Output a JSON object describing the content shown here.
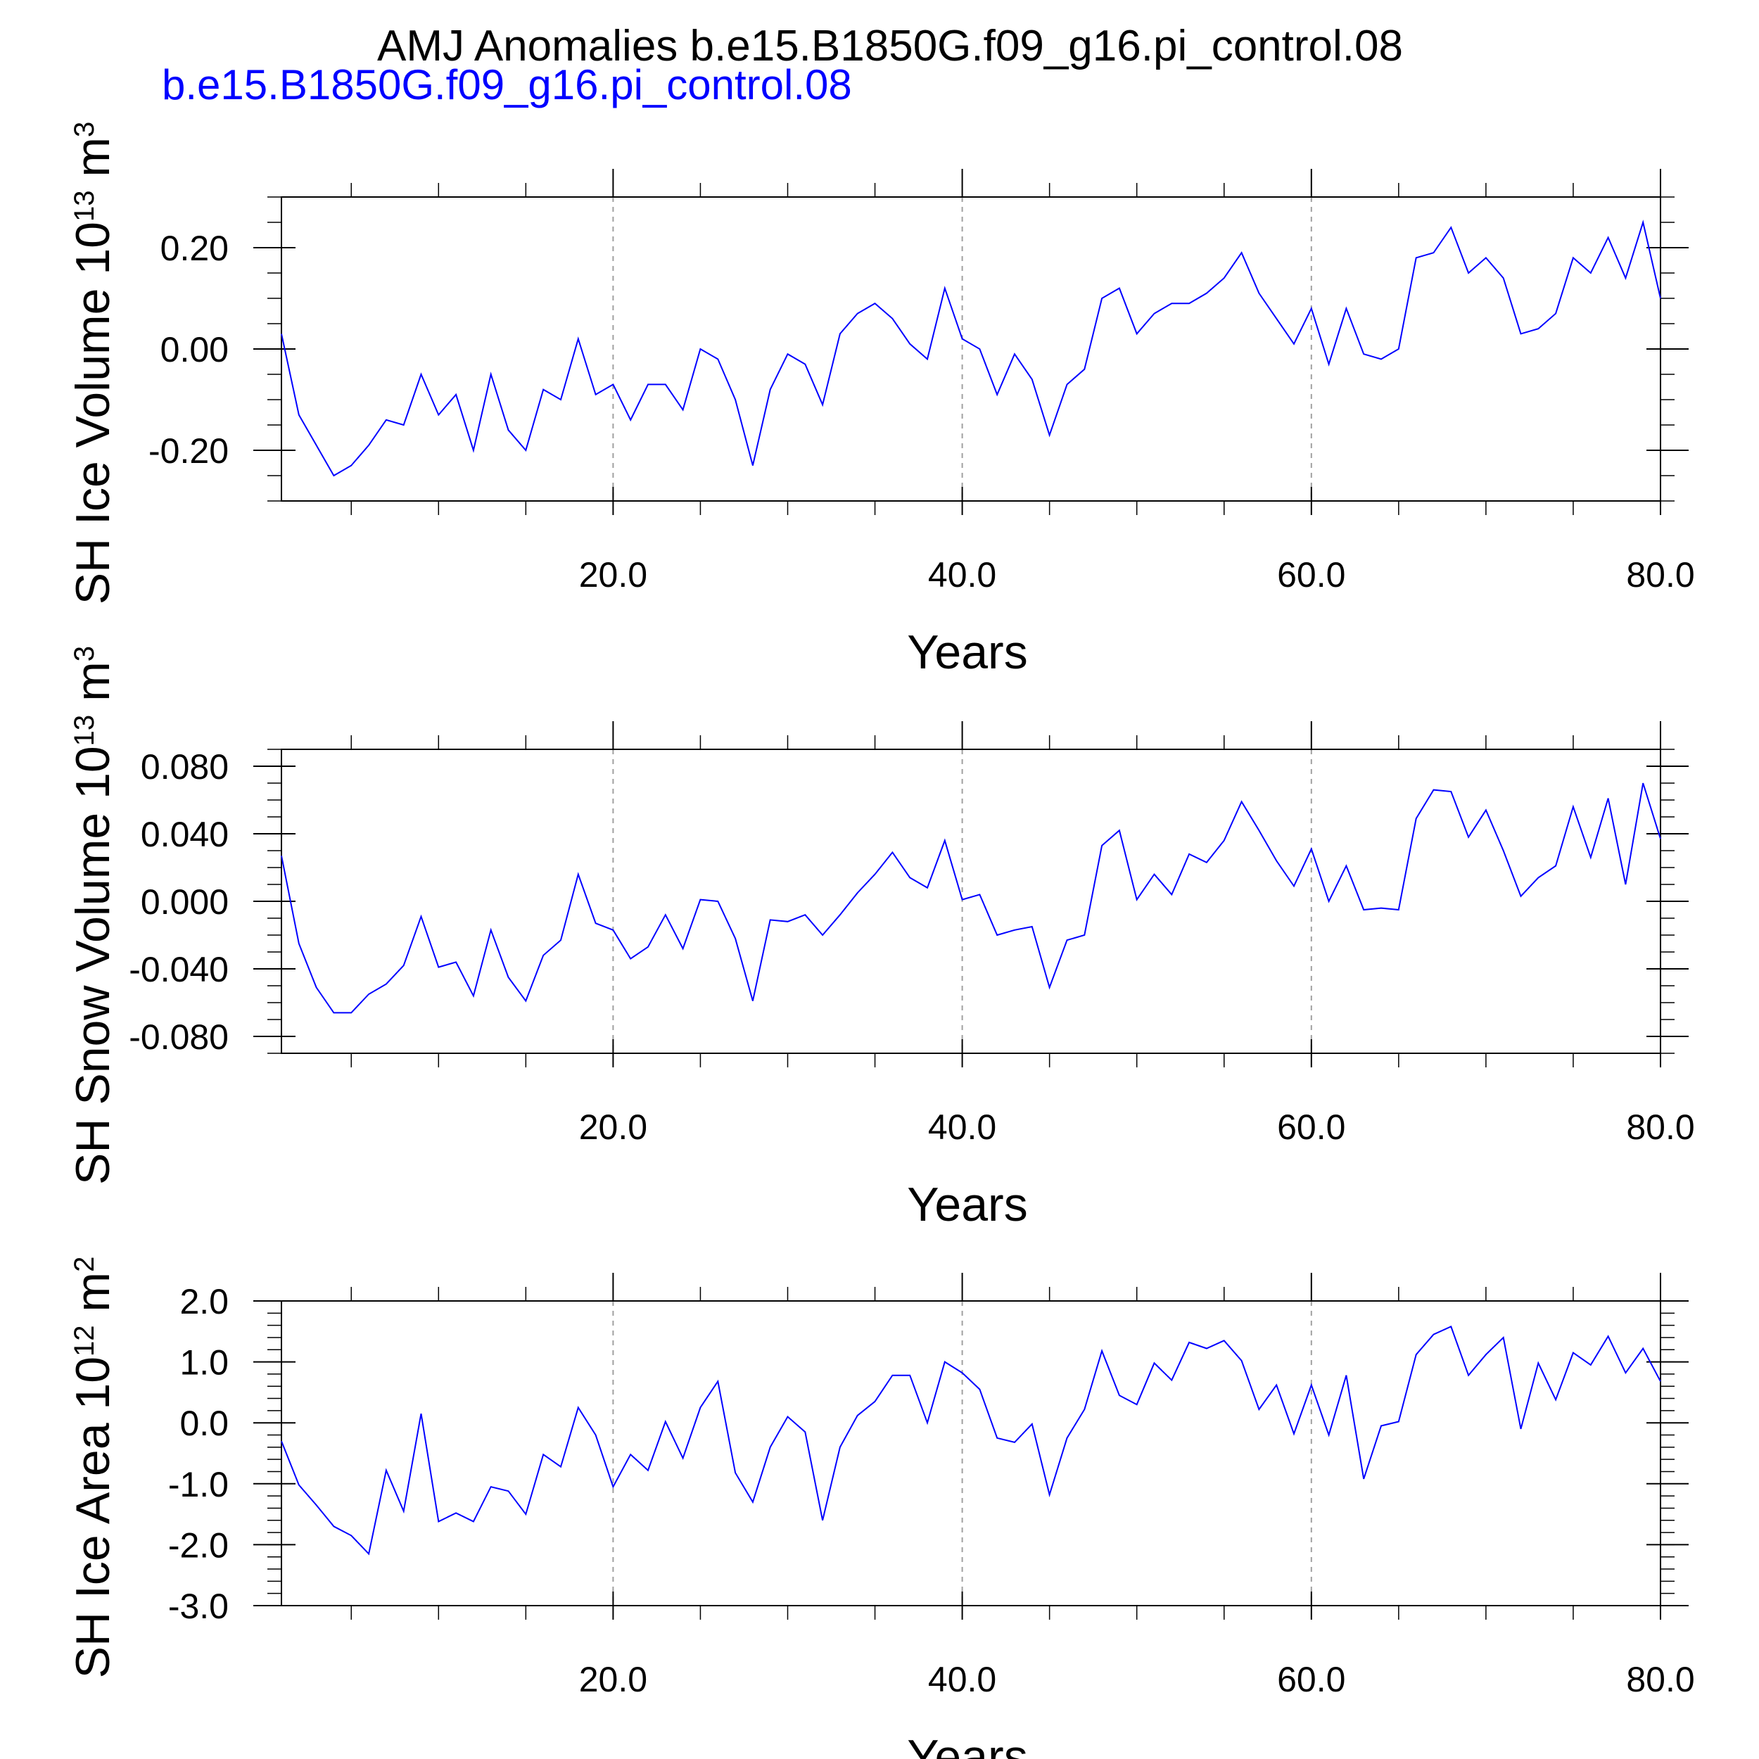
{
  "figure": {
    "title": "AMJ Anomalies b.e15.B1850G.f09_g16.pi_control.08",
    "legend_label": "b.e15.B1850G.f09_g16.pi_control.08",
    "series_color": "#0000ff",
    "reference_line_color": "#a0a0a0"
  },
  "chart_data": [
    {
      "type": "line",
      "ylabel": "SH Ice Volume 10",
      "ylabel_exponent": "13",
      "ylabel_unit": " m",
      "ylabel_unit_exponent": "3",
      "xlabel": "Years",
      "xlim": [
        1,
        80
      ],
      "ylim": [
        -0.3,
        0.3
      ],
      "x_ticks": [
        20,
        40,
        60,
        80
      ],
      "x_tick_labels": [
        "20.0",
        "40.0",
        "60.0",
        "80.0"
      ],
      "x_minor_ticks": [
        5,
        10,
        15,
        25,
        30,
        35,
        45,
        50,
        55,
        65,
        70,
        75
      ],
      "y_ticks": [
        -0.2,
        0.0,
        0.2
      ],
      "y_tick_labels": [
        "-0.20",
        "0.00",
        "0.20"
      ],
      "y_minor_step": 0.05,
      "vertical_reference_lines": [
        20,
        40,
        60
      ],
      "grid": false,
      "x": [
        1,
        2,
        3,
        4,
        5,
        6,
        7,
        8,
        9,
        10,
        11,
        12,
        13,
        14,
        15,
        16,
        17,
        18,
        19,
        20,
        21,
        22,
        23,
        24,
        25,
        26,
        27,
        28,
        29,
        30,
        31,
        32,
        33,
        34,
        35,
        36,
        37,
        38,
        39,
        40,
        41,
        42,
        43,
        44,
        45,
        46,
        47,
        48,
        49,
        50,
        51,
        52,
        53,
        54,
        55,
        56,
        57,
        58,
        59,
        60,
        61,
        62,
        63,
        64,
        65,
        66,
        67,
        68,
        69,
        70,
        71,
        72,
        73,
        74,
        75,
        76,
        77,
        78,
        79,
        80
      ],
      "series": [
        {
          "values": [
            0.03,
            -0.13,
            -0.19,
            -0.25,
            -0.23,
            -0.19,
            -0.14,
            -0.15,
            -0.05,
            -0.13,
            -0.09,
            -0.2,
            -0.05,
            -0.16,
            -0.2,
            -0.08,
            -0.1,
            0.02,
            -0.09,
            -0.07,
            -0.14,
            -0.07,
            -0.07,
            -0.12,
            0.0,
            -0.02,
            -0.1,
            -0.23,
            -0.08,
            -0.01,
            -0.03,
            -0.11,
            0.03,
            0.07,
            0.09,
            0.06,
            0.01,
            -0.02,
            0.12,
            0.02,
            0.0,
            -0.09,
            -0.01,
            -0.06,
            -0.17,
            -0.07,
            -0.04,
            0.1,
            0.12,
            0.03,
            0.07,
            0.09,
            0.09,
            0.11,
            0.14,
            0.19,
            0.11,
            0.06,
            0.01,
            0.08,
            -0.03,
            0.08,
            -0.01,
            -0.02,
            0.0,
            0.18,
            0.19,
            0.24,
            0.15,
            0.18,
            0.14,
            0.03,
            0.04,
            0.07,
            0.18,
            0.15,
            0.22,
            0.14,
            0.25,
            0.1
          ]
        }
      ]
    },
    {
      "type": "line",
      "ylabel": "SH Snow Volume 10",
      "ylabel_exponent": "13",
      "ylabel_unit": " m",
      "ylabel_unit_exponent": "3",
      "xlabel": "Years",
      "xlim": [
        1,
        80
      ],
      "ylim": [
        -0.09,
        0.09
      ],
      "x_ticks": [
        20,
        40,
        60,
        80
      ],
      "x_tick_labels": [
        "20.0",
        "40.0",
        "60.0",
        "80.0"
      ],
      "x_minor_ticks": [
        5,
        10,
        15,
        25,
        30,
        35,
        45,
        50,
        55,
        65,
        70,
        75
      ],
      "y_ticks": [
        -0.08,
        -0.04,
        0.0,
        0.04,
        0.08
      ],
      "y_tick_labels": [
        "-0.080",
        "-0.040",
        "0.000",
        "0.040",
        "0.080"
      ],
      "y_minor_step": 0.01,
      "vertical_reference_lines": [
        20,
        40,
        60
      ],
      "grid": false,
      "x": [
        1,
        2,
        3,
        4,
        5,
        6,
        7,
        8,
        9,
        10,
        11,
        12,
        13,
        14,
        15,
        16,
        17,
        18,
        19,
        20,
        21,
        22,
        23,
        24,
        25,
        26,
        27,
        28,
        29,
        30,
        31,
        32,
        33,
        34,
        35,
        36,
        37,
        38,
        39,
        40,
        41,
        42,
        43,
        44,
        45,
        46,
        47,
        48,
        49,
        50,
        51,
        52,
        53,
        54,
        55,
        56,
        57,
        58,
        59,
        60,
        61,
        62,
        63,
        64,
        65,
        66,
        67,
        68,
        69,
        70,
        71,
        72,
        73,
        74,
        75,
        76,
        77,
        78,
        79,
        80
      ],
      "series": [
        {
          "values": [
            0.027,
            -0.025,
            -0.051,
            -0.066,
            -0.066,
            -0.055,
            -0.049,
            -0.038,
            -0.009,
            -0.039,
            -0.036,
            -0.056,
            -0.017,
            -0.045,
            -0.059,
            -0.032,
            -0.023,
            0.016,
            -0.013,
            -0.017,
            -0.034,
            -0.027,
            -0.008,
            -0.028,
            0.001,
            0.0,
            -0.022,
            -0.059,
            -0.011,
            -0.012,
            -0.008,
            -0.02,
            -0.008,
            0.005,
            0.016,
            0.029,
            0.014,
            0.008,
            0.036,
            0.001,
            0.004,
            -0.02,
            -0.017,
            -0.015,
            -0.051,
            -0.023,
            -0.02,
            0.033,
            0.042,
            0.001,
            0.016,
            0.004,
            0.028,
            0.023,
            0.036,
            0.059,
            0.042,
            0.024,
            0.009,
            0.031,
            0.0,
            0.021,
            -0.005,
            -0.004,
            -0.005,
            0.049,
            0.066,
            0.065,
            0.038,
            0.054,
            0.03,
            0.003,
            0.014,
            0.021,
            0.056,
            0.026,
            0.061,
            0.01,
            0.07,
            0.037
          ]
        }
      ]
    },
    {
      "type": "line",
      "ylabel": "SH Ice Area 10",
      "ylabel_exponent": "12",
      "ylabel_unit": " m",
      "ylabel_unit_exponent": "2",
      "xlabel": "Years",
      "xlim": [
        1,
        80
      ],
      "ylim": [
        -3.0,
        2.0
      ],
      "x_ticks": [
        20,
        40,
        60,
        80
      ],
      "x_tick_labels": [
        "20.0",
        "40.0",
        "60.0",
        "80.0"
      ],
      "x_minor_ticks": [
        5,
        10,
        15,
        25,
        30,
        35,
        45,
        50,
        55,
        65,
        70,
        75
      ],
      "y_ticks": [
        -3.0,
        -2.0,
        -1.0,
        0.0,
        1.0,
        2.0
      ],
      "y_tick_labels": [
        "-3.0",
        "-2.0",
        "-1.0",
        "0.0",
        "1.0",
        "2.0"
      ],
      "y_minor_step": 0.2,
      "vertical_reference_lines": [
        20,
        40,
        60
      ],
      "grid": false,
      "x": [
        1,
        2,
        3,
        4,
        5,
        6,
        7,
        8,
        9,
        10,
        11,
        12,
        13,
        14,
        15,
        16,
        17,
        18,
        19,
        20,
        21,
        22,
        23,
        24,
        25,
        26,
        27,
        28,
        29,
        30,
        31,
        32,
        33,
        34,
        35,
        36,
        37,
        38,
        39,
        40,
        41,
        42,
        43,
        44,
        45,
        46,
        47,
        48,
        49,
        50,
        51,
        52,
        53,
        54,
        55,
        56,
        57,
        58,
        59,
        60,
        61,
        62,
        63,
        64,
        65,
        66,
        67,
        68,
        69,
        70,
        71,
        72,
        73,
        74,
        75,
        76,
        77,
        78,
        79,
        80
      ],
      "series": [
        {
          "values": [
            -0.3,
            -1.02,
            -1.35,
            -1.7,
            -1.85,
            -2.15,
            -0.78,
            -1.45,
            0.15,
            -1.62,
            -1.48,
            -1.62,
            -1.05,
            -1.12,
            -1.5,
            -0.52,
            -0.72,
            0.25,
            -0.2,
            -1.05,
            -0.52,
            -0.78,
            0.02,
            -0.58,
            0.25,
            0.68,
            -0.82,
            -1.3,
            -0.4,
            0.1,
            -0.15,
            -1.6,
            -0.4,
            0.12,
            0.35,
            0.78,
            0.78,
            0.0,
            1.0,
            0.82,
            0.55,
            -0.25,
            -0.32,
            -0.02,
            -1.18,
            -0.25,
            0.22,
            1.18,
            0.45,
            0.3,
            0.98,
            0.7,
            1.32,
            1.22,
            1.35,
            1.02,
            0.22,
            0.62,
            -0.18,
            0.62,
            -0.2,
            0.78,
            -0.92,
            -0.05,
            0.02,
            1.12,
            1.45,
            1.58,
            0.78,
            1.12,
            1.4,
            -0.1,
            0.98,
            0.38,
            1.15,
            0.95,
            1.42,
            0.82,
            1.22,
            0.68
          ]
        }
      ]
    }
  ]
}
